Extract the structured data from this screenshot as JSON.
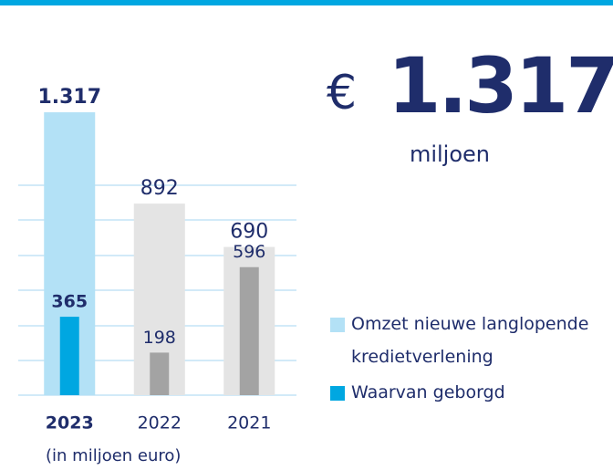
{
  "chart_data": {
    "type": "bar",
    "headline": {
      "currency": "€",
      "value": "1.317",
      "unit": "miljoen"
    },
    "note": "(in miljoen euro)",
    "categories": [
      "2023",
      "2022",
      "2021"
    ],
    "highlight_index": 0,
    "series": [
      {
        "name": "Omzet nieuwe langlopende kredietverlening",
        "color": "#b3e1f6",
        "colors": [
          "#b3e1f6",
          "#e4e4e4",
          "#e4e4e4"
        ],
        "values": [
          1317,
          892,
          690
        ],
        "value_labels": [
          "1.317",
          "892",
          "690"
        ]
      },
      {
        "name": "Waarvan geborgd",
        "color": "#00a7e1",
        "colors": [
          "#00a7e1",
          "#a3a3a3",
          "#a3a3a3"
        ],
        "values": [
          365,
          198,
          596
        ]
      }
    ],
    "ylim": [
      0,
      1400
    ],
    "grid": false
  }
}
